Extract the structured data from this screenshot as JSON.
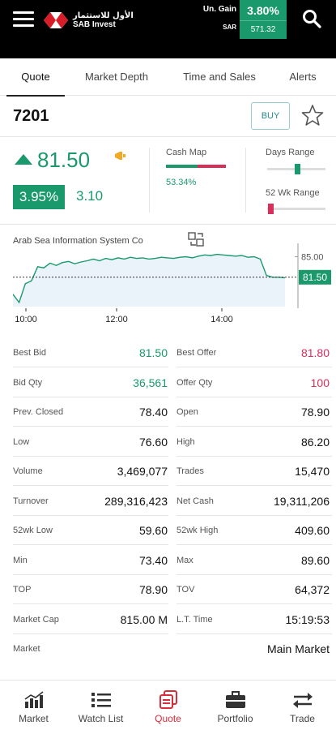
{
  "header": {
    "logo_arabic": "الأول للاستثمار",
    "logo_english": "SAB Invest",
    "gain_label": "Un. Gain",
    "currency_label": "SAR",
    "gain_percent": "3.80%",
    "gain_amount": "571.32"
  },
  "tabs": [
    {
      "label": "Quote",
      "active": true
    },
    {
      "label": "Market Depth",
      "active": false
    },
    {
      "label": "Time and Sales",
      "active": false
    },
    {
      "label": "Alerts",
      "active": false
    }
  ],
  "quote": {
    "symbol": "7201",
    "buy_label": "BUY",
    "price": "81.50",
    "change_percent": "3.95%",
    "change_value": "3.10",
    "cash_map_label": "Cash Map",
    "cash_map_percent": "53.34%",
    "cash_map_fraction": 0.5334,
    "days_range_label": "Days Range",
    "days_range_position": 0.52,
    "wk52_range_label": "52 Wk Range",
    "wk52_range_position": 0.06
  },
  "chart": {
    "company": "Arab Sea Information System Co",
    "last_price_label": "81.50",
    "level_label": "85.00",
    "x_ticks": [
      "10:00",
      "12:00",
      "14:00"
    ]
  },
  "chart_data": {
    "type": "area",
    "title": "Arab Sea Information System Co",
    "x_labels": [
      "10:00",
      "12:00",
      "14:00"
    ],
    "ylim": [
      76.5,
      87
    ],
    "reference_line": 81.5,
    "series": [
      {
        "values": [
          78.6,
          77.2,
          80.4,
          80.9,
          83.3,
          83.1,
          83.9,
          83.5,
          84.0,
          84.2,
          83.8,
          84.1,
          84.3,
          84.6,
          84.3,
          84.7,
          84.5,
          84.8,
          84.6,
          84.9,
          84.7,
          84.8,
          84.6,
          84.7,
          84.9,
          84.8,
          84.7,
          84.9,
          85.0,
          84.8,
          85.1,
          85.3,
          85.2,
          85.4,
          85.3,
          85.2,
          85.1,
          85.2,
          84.9,
          85.0,
          84.6,
          81.8,
          81.5,
          81.5,
          81.4
        ]
      }
    ],
    "ylabel": "",
    "xlabel": ""
  },
  "stats": [
    {
      "left_label": "Best Bid",
      "left_value": "81.50",
      "left_color": "#1a9a6c",
      "right_label": "Best Offer",
      "right_value": "81.80",
      "right_color": "#d92d5a"
    },
    {
      "left_label": "Bid Qty",
      "left_value": "36,561",
      "left_color": "#1a9a6c",
      "right_label": "Offer Qty",
      "right_value": "100",
      "right_color": "#d92d5a"
    },
    {
      "left_label": "Prev. Closed",
      "left_value": "78.40",
      "left_color": "#111111",
      "right_label": "Open",
      "right_value": "78.90",
      "right_color": "#111111"
    },
    {
      "left_label": "Low",
      "left_value": "76.60",
      "left_color": "#111111",
      "right_label": "High",
      "right_value": "86.20",
      "right_color": "#111111"
    },
    {
      "left_label": "Volume",
      "left_value": "3,469,077",
      "left_color": "#111111",
      "right_label": "Trades",
      "right_value": "15,470",
      "right_color": "#111111"
    },
    {
      "left_label": "Turnover",
      "left_value": "289,316,423",
      "left_color": "#111111",
      "right_label": "Net Cash",
      "right_value": "19,311,206",
      "right_color": "#111111"
    },
    {
      "left_label": "52wk Low",
      "left_value": "59.60",
      "left_color": "#111111",
      "right_label": "52wk High",
      "right_value": "409.60",
      "right_color": "#111111"
    },
    {
      "left_label": "Min",
      "left_value": "73.40",
      "left_color": "#111111",
      "right_label": "Max",
      "right_value": "89.60",
      "right_color": "#111111"
    },
    {
      "left_label": "TOP",
      "left_value": "78.90",
      "left_color": "#111111",
      "right_label": "TOV",
      "right_value": "64,372",
      "right_color": "#111111"
    },
    {
      "left_label": "Market Cap",
      "left_value": "815.00 M",
      "left_color": "#111111",
      "right_label": "L.T. Time",
      "right_value": "15:19:53",
      "right_color": "#111111"
    }
  ],
  "market_row": {
    "label": "Market",
    "value": "Main Market"
  },
  "nav": [
    {
      "label": "Market",
      "icon": "bar-chart-icon",
      "active": false
    },
    {
      "label": "Watch List",
      "icon": "list-icon",
      "active": false
    },
    {
      "label": "Quote",
      "icon": "quote-icon",
      "active": true
    },
    {
      "label": "Portfolio",
      "icon": "briefcase-icon",
      "active": false
    },
    {
      "label": "Trade",
      "icon": "swap-arrows-icon",
      "active": false
    }
  ],
  "colors": {
    "positive": "#1a9a6c",
    "negative": "#d92d5a",
    "active_nav": "#d92d3a",
    "header": "#000000"
  }
}
